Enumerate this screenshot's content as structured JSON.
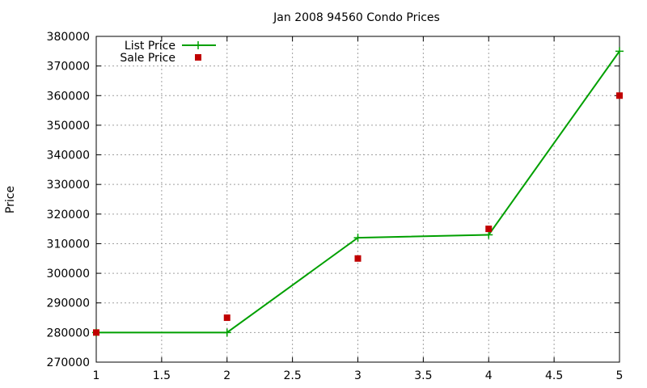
{
  "chart_data": {
    "type": "line",
    "title": "Jan 2008 94560 Condo Prices",
    "xlabel": "",
    "ylabel": "Price",
    "xlim": [
      1,
      5
    ],
    "ylim": [
      270000,
      380000
    ],
    "x_ticks": [
      "1",
      "1.5",
      "2",
      "2.5",
      "3",
      "3.5",
      "4",
      "4.5",
      "5"
    ],
    "y_ticks": [
      "270000",
      "280000",
      "290000",
      "300000",
      "310000",
      "320000",
      "330000",
      "340000",
      "350000",
      "360000",
      "370000",
      "380000"
    ],
    "grid": true,
    "legend_position": "top-left",
    "series": [
      {
        "name": "List Price",
        "style": "line-with-plus-markers",
        "color": "#00a000",
        "x": [
          1,
          2,
          3,
          4,
          5
        ],
        "values": [
          280000,
          280000,
          312000,
          313000,
          375000
        ]
      },
      {
        "name": "Sale Price",
        "style": "square-markers",
        "color": "#c00000",
        "x": [
          1,
          2,
          3,
          4,
          5
        ],
        "values": [
          280000,
          285000,
          305000,
          315000,
          360000
        ]
      }
    ]
  }
}
